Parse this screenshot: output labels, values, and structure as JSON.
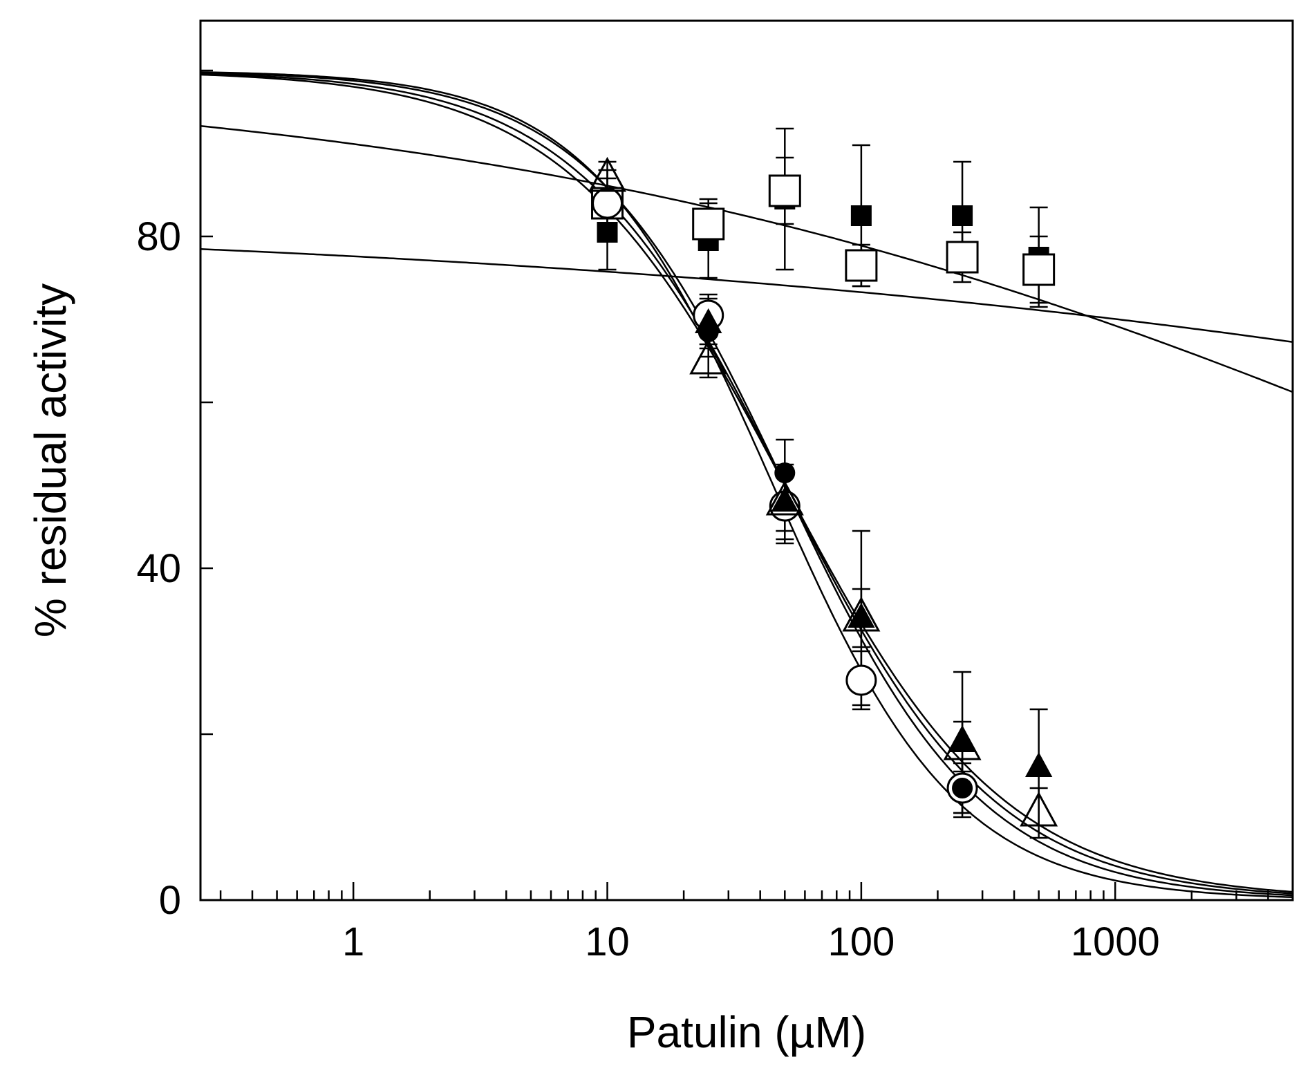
{
  "chart_data": {
    "type": "scatter",
    "title": "",
    "xlabel": "Patulin (µM)",
    "ylabel": "% residual activity",
    "xscale": "log",
    "xlim": [
      0.25,
      5000
    ],
    "ylim": [
      0,
      106
    ],
    "x_tick_labels": [
      "1",
      "10",
      "100",
      "1000"
    ],
    "y_tick_labels": [
      "0",
      "40",
      "80"
    ],
    "grid": false,
    "series": [
      {
        "name": "filled squares",
        "marker": "square-filled",
        "x": [
          10,
          25,
          50,
          100,
          250,
          500
        ],
        "y": [
          80.5,
          79.5,
          84.5,
          82.5,
          82.5,
          77.5
        ],
        "err": [
          4.5,
          4.5,
          8.5,
          8.5,
          6.5,
          6.0
        ],
        "fit": {
          "top": 82.5,
          "ic50": 100000000.0,
          "hill": 0.15
        }
      },
      {
        "name": "open squares",
        "marker": "square-open",
        "x": [
          10,
          25,
          50,
          100,
          250,
          500
        ],
        "y": [
          84.0,
          81.5,
          85.5,
          76.5,
          77.5,
          76.0
        ],
        "err": [
          4.0,
          3.0,
          4.0,
          2.5,
          3.0,
          4.0
        ],
        "fit": {
          "top": 100,
          "ic50": 40000,
          "hill": 0.22
        }
      },
      {
        "name": "open circles",
        "marker": "circle-open",
        "x": [
          10,
          25,
          50,
          100,
          250
        ],
        "y": [
          84.0,
          70.5,
          47.5,
          26.5,
          13.5
        ],
        "err": [
          3.0,
          2.5,
          4.5,
          3.5,
          3.0
        ],
        "fit": {
          "top": 100,
          "ic50": 45,
          "hill": 1.2
        }
      },
      {
        "name": "filled circles",
        "marker": "circle-filled",
        "x": [
          25,
          50,
          250
        ],
        "y": [
          68.5,
          51.5,
          13.5
        ],
        "err": [
          3.0,
          4.0,
          3.5
        ],
        "fit": {
          "top": 100,
          "ic50": 50,
          "hill": 1.12
        }
      },
      {
        "name": "filled triangles",
        "marker": "triangle-filled",
        "x": [
          25,
          50,
          100,
          250,
          500
        ],
        "y": [
          69.5,
          48.0,
          34.0,
          19.0,
          16.0
        ],
        "err": [
          3.0,
          4.5,
          10.5,
          8.5,
          7.0
        ],
        "fit": {
          "top": 100,
          "ic50": 50,
          "hill": 1.05
        }
      },
      {
        "name": "open triangles",
        "marker": "triangle-open",
        "x": [
          10,
          25,
          50,
          100,
          250,
          500
        ],
        "y": [
          87.0,
          65.0,
          48.0,
          34.0,
          18.5,
          10.5
        ],
        "err": [
          2.0,
          2.0,
          3.5,
          3.5,
          3.0,
          3.0
        ],
        "fit": {
          "top": 100,
          "ic50": 50,
          "hill": 1.0
        }
      }
    ]
  }
}
